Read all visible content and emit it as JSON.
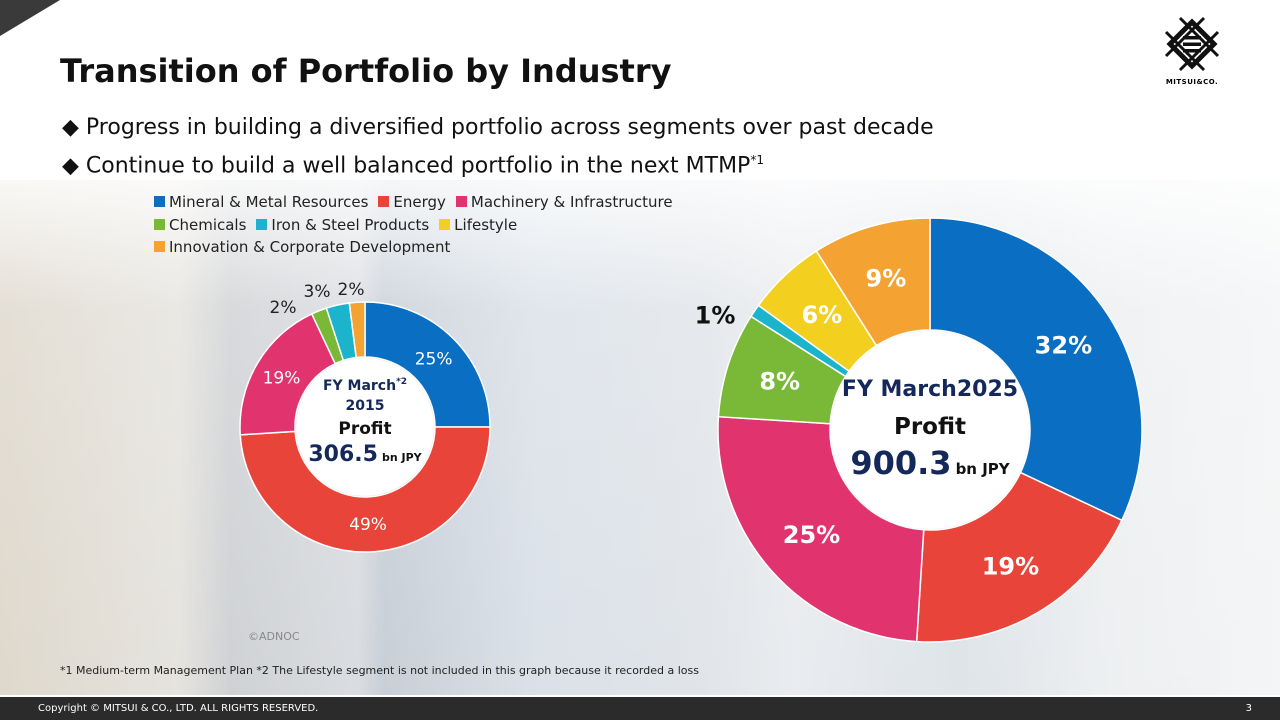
{
  "title": "Transition of Portfolio by Industry",
  "bullets": [
    {
      "text": "◆ Progress in building a diversified portfolio across segments over past decade",
      "sup": ""
    },
    {
      "text": "◆ Continue to build a well balanced portfolio in the next MTMP",
      "sup": "*1"
    }
  ],
  "logo_text": "MITSUI&CO.",
  "chart_data": [
    {
      "type": "pie",
      "variant": "donut",
      "center": {
        "line1": "FY March",
        "line1_sup": "*2",
        "line2": "2015",
        "line3": "Profit",
        "value": "306.5",
        "unit": "bn JPY"
      },
      "categories": [
        "Mineral & Metal Resources",
        "Energy",
        "Machinery & Infrastructure",
        "Chemicals",
        "Iron & Steel Products",
        "Innovation & Corporate Development"
      ],
      "values": [
        25,
        49,
        19,
        2,
        3,
        2
      ],
      "labels": [
        "25%",
        "49%",
        "19%",
        "2%",
        "3%",
        "2%"
      ],
      "colors": [
        "#0a6fc2",
        "#e9443a",
        "#e1346e",
        "#7ab838",
        "#1cb4cc",
        "#f4a232"
      ]
    },
    {
      "type": "pie",
      "variant": "donut",
      "center": {
        "line1": "FY March2025",
        "line3": "Profit",
        "value": "900.3",
        "unit": "bn JPY"
      },
      "categories": [
        "Mineral & Metal Resources",
        "Energy",
        "Machinery & Infrastructure",
        "Chemicals",
        "Iron & Steel Products",
        "Lifestyle",
        "Innovation & Corporate Development"
      ],
      "values": [
        32,
        19,
        25,
        8,
        1,
        6,
        9
      ],
      "labels": [
        "32%",
        "19%",
        "25%",
        "8%",
        "1%",
        "6%",
        "9%"
      ],
      "colors": [
        "#0a6fc2",
        "#e9443a",
        "#e1346e",
        "#7ab838",
        "#1cb4cc",
        "#f3cf1f",
        "#f4a232"
      ]
    }
  ],
  "legend": [
    {
      "label": "Mineral & Metal Resources",
      "color": "#0a6fc2"
    },
    {
      "label": "Energy",
      "color": "#e9443a"
    },
    {
      "label": "Machinery & Infrastructure",
      "color": "#e1346e"
    },
    {
      "label": "Chemicals",
      "color": "#7ab838"
    },
    {
      "label": "Iron & Steel Products",
      "color": "#1cb4cc"
    },
    {
      "label": "Lifestyle",
      "color": "#f3cf1f"
    },
    {
      "label": "Innovation & Corporate Development",
      "color": "#f4a232"
    }
  ],
  "photo_credit": "©ADNOC",
  "footnote": "*1 Medium-term Management Plan   *2 The Lifestyle segment is not included in this graph because it recorded a loss",
  "copyright": "Copyright © MITSUI & CO., LTD. ALL RIGHTS RESERVED.",
  "page_number": "3"
}
